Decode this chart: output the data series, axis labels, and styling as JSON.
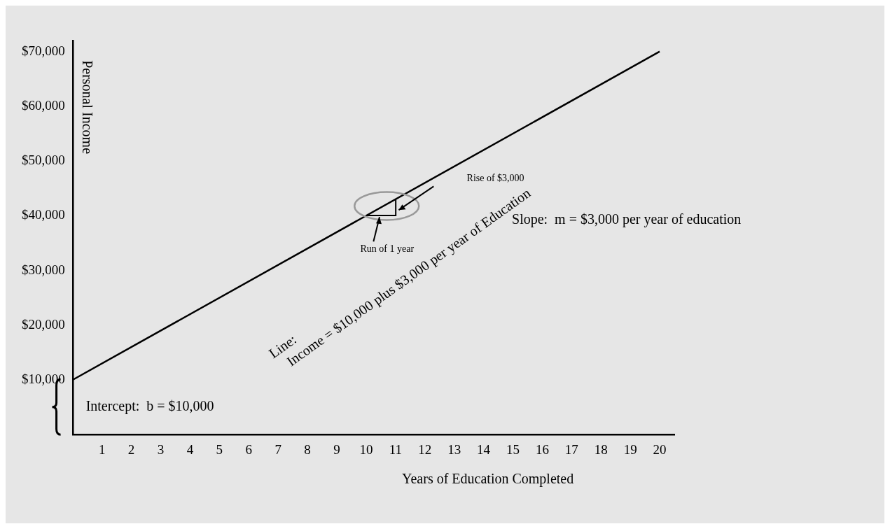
{
  "chart_data": {
    "type": "line",
    "xlabel": "Years of Education Completed",
    "ylabel": "Personal Income",
    "series": [
      {
        "x": [
          0,
          20
        ],
        "values": [
          10000,
          70000
        ],
        "color": "#000000"
      }
    ],
    "xlim": [
      0,
      20.5
    ],
    "xticks": [
      {
        "value": 0,
        "label": null
      },
      1,
      2,
      3,
      4,
      5,
      6,
      7,
      8,
      9,
      10,
      11,
      12,
      13,
      14,
      15,
      16,
      17,
      18,
      19,
      20
    ],
    "ylim": [
      0,
      72000
    ],
    "yticks": [
      {
        "value": 0,
        "label": null
      },
      {
        "value": 10000,
        "label": "$10,000"
      },
      {
        "value": 20000,
        "label": "$20,000"
      },
      {
        "value": 30000,
        "label": "$30,000"
      },
      {
        "value": 40000,
        "label": "$40,000"
      },
      {
        "value": 50000,
        "label": "$50,000"
      },
      {
        "value": 60000,
        "label": "$60,000"
      },
      {
        "value": 70000,
        "label": "$70,000"
      }
    ],
    "annotations": [
      "Rise of $3,000",
      "Run of 1 year",
      "Slope:  m = $3,000 per year of education",
      "Line:\nIncome = $10,000 plus $3,000 per year of Education",
      "Intercept:  b = $10,000"
    ],
    "grid": false,
    "legend": false,
    "marker": "none",
    "line_style": "solid"
  }
}
